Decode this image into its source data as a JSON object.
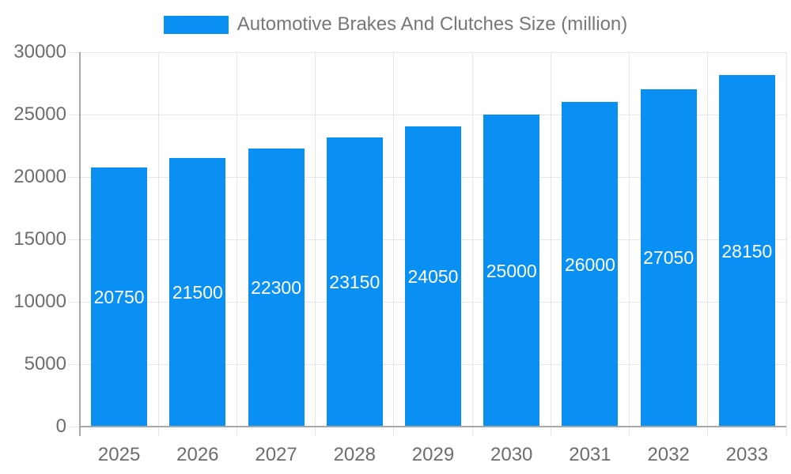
{
  "legend": {
    "label": "Automotive Brakes And Clutches Size (million)"
  },
  "chart_data": {
    "type": "bar",
    "title": "Automotive Brakes And Clutches Size (million)",
    "categories": [
      "2025",
      "2026",
      "2027",
      "2028",
      "2029",
      "2030",
      "2031",
      "2032",
      "2033"
    ],
    "series": [
      {
        "name": "Automotive Brakes And Clutches Size (million)",
        "values": [
          20750,
          21500,
          22300,
          23150,
          24050,
          25000,
          26000,
          27050,
          28150
        ]
      }
    ],
    "data_labels_shown": true,
    "xlabel": "",
    "ylabel": "",
    "ylim": [
      0,
      30000
    ],
    "yticks": [
      0,
      5000,
      10000,
      15000,
      20000,
      25000,
      30000
    ],
    "grid": true,
    "legend_position": "top"
  },
  "colors": {
    "bar": "#0990f2",
    "bar_value_text": "#ffffff",
    "gridline": "#e6e6e6",
    "axis_line": "#a8a8a8",
    "tick_label": "#6d6d6d",
    "legend_text": "#777777",
    "background": "#ffffff"
  }
}
